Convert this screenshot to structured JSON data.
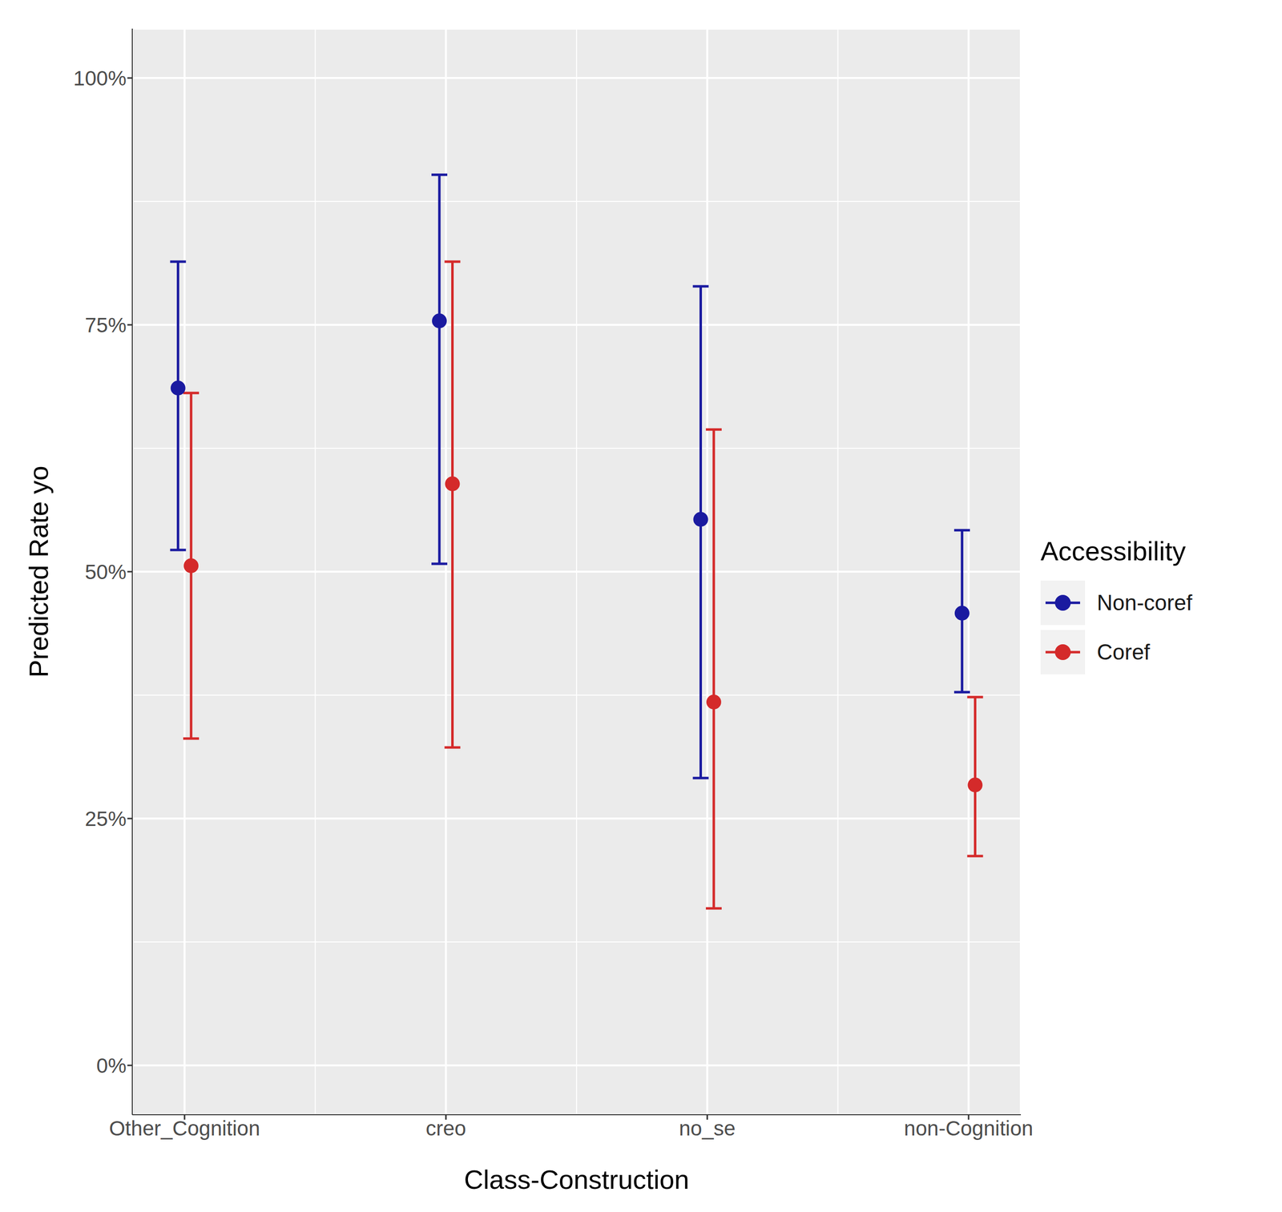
{
  "chart_data": {
    "type": "scatter",
    "x_label": "Class-Construction",
    "y_label": "Predicted Rate yo",
    "categories": [
      "Other_Cognition",
      "creo",
      "no_se",
      "non-Cognition"
    ],
    "series": [
      {
        "name": "Non-coref",
        "color": "#1a1aa0",
        "values": [
          68.6,
          75.4,
          55.3,
          45.8
        ],
        "lower": [
          52.2,
          50.8,
          29.1,
          37.8
        ],
        "upper": [
          81.4,
          90.2,
          78.9,
          54.2
        ]
      },
      {
        "name": "Coref",
        "color": "#d42a2a",
        "values": [
          50.6,
          58.9,
          36.8,
          28.4
        ],
        "lower": [
          33.1,
          32.2,
          15.9,
          21.2
        ],
        "upper": [
          68.1,
          81.4,
          64.4,
          37.3
        ]
      }
    ],
    "ylim": [
      -5,
      105
    ],
    "yticks": [
      {
        "value": 0,
        "label": "0%"
      },
      {
        "value": 25,
        "label": "25%"
      },
      {
        "value": 50,
        "label": "50%"
      },
      {
        "value": 75,
        "label": "75%"
      },
      {
        "value": 100,
        "label": "100%"
      }
    ],
    "legend_title": "Accessibility",
    "legend": "right",
    "grid": true
  }
}
